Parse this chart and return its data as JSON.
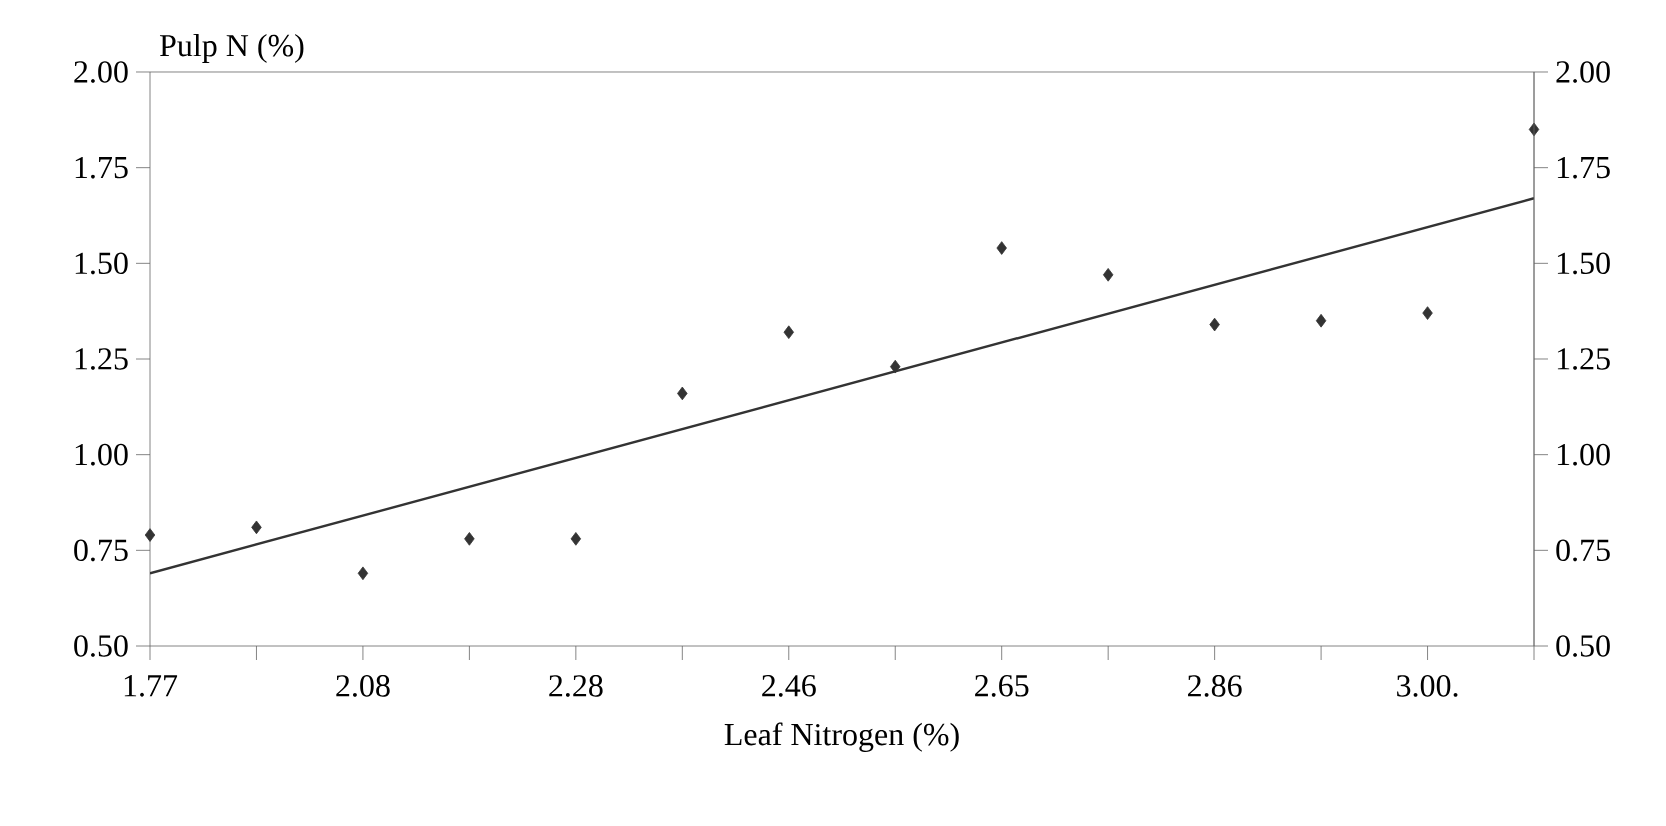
{
  "chart_data": {
    "type": "scatter",
    "xlabel": "Leaf Nitrogen (%)",
    "ylabel": "Pulp N (%)",
    "categories": [
      "1.77",
      null,
      "2.08",
      null,
      "2.28",
      null,
      "2.46",
      null,
      "2.65",
      null,
      "2.86",
      null,
      "3.00.",
      null
    ],
    "series": [
      {
        "color": "#333333",
        "marker": "diamond",
        "values": [
          0.79,
          0.81,
          0.69,
          0.78,
          0.78,
          1.16,
          1.32,
          1.23,
          1.54,
          1.47,
          1.34,
          1.35,
          1.37,
          1.85
        ]
      },
      {
        "type": "line",
        "color": "#333333",
        "line_style": "solid",
        "marker": "none",
        "values": [
          0.69,
          null,
          null,
          null,
          null,
          null,
          null,
          null,
          null,
          null,
          null,
          null,
          null,
          1.67
        ]
      }
    ],
    "ylim": [
      0.5,
      2.0
    ],
    "yticks": [
      {
        "value": 0.5,
        "label": "0.50"
      },
      {
        "value": 0.75,
        "label": "0.75"
      },
      {
        "value": 1.0,
        "label": "1.00"
      },
      {
        "value": 1.25,
        "label": "1.25"
      },
      {
        "value": 1.5,
        "label": "1.50"
      },
      {
        "value": 1.75,
        "label": "1.75"
      },
      {
        "value": 2.0,
        "label": "2.00"
      }
    ],
    "y2lim": [
      0.5,
      2.0
    ],
    "y2ticks": [
      {
        "value": 0.5,
        "label": "0.50"
      },
      {
        "value": 0.75,
        "label": "0.75"
      },
      {
        "value": 1.0,
        "label": "1.00"
      },
      {
        "value": 1.25,
        "label": "1.25"
      },
      {
        "value": 1.5,
        "label": "1.50"
      },
      {
        "value": 1.75,
        "label": "1.75"
      },
      {
        "value": 2.0,
        "label": "2.00"
      }
    ],
    "grid": false
  }
}
